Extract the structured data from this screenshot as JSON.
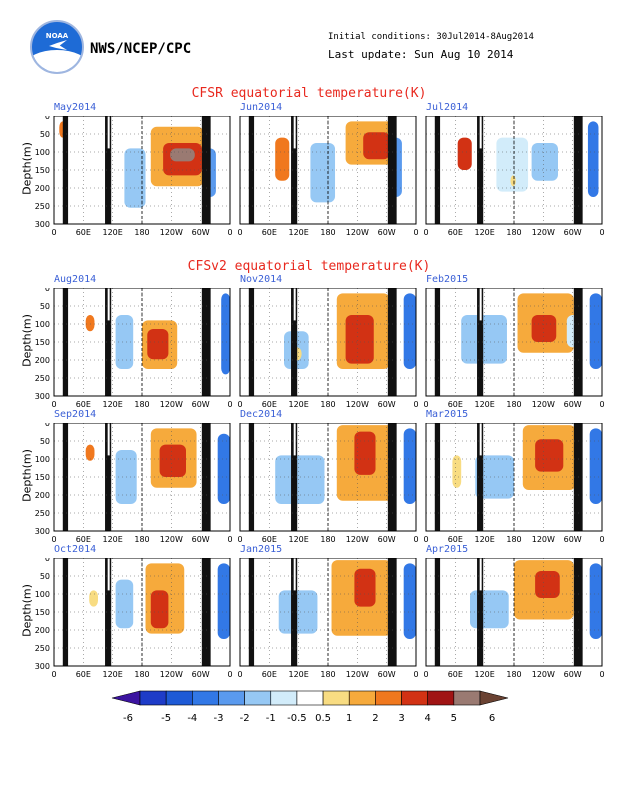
{
  "header": {
    "logo_text": "NOAA",
    "org": "NWS/NCEP/CPC",
    "initial_conditions": "Initial conditions: 30Jul2014-8Aug2014",
    "last_update": "Last update: Sun Aug 10 2014"
  },
  "sections": {
    "cfsr_title": "CFSR equatorial temperature(K)",
    "cfsv2_title": "CFSv2 equatorial temperature(K)"
  },
  "axes": {
    "ylabel": "Depth(m)",
    "yticks": [
      "0",
      "50",
      "100",
      "150",
      "200",
      "250",
      "300"
    ],
    "xticks": [
      "0",
      "60E",
      "120E",
      "180",
      "120W",
      "60W",
      "0"
    ]
  },
  "colors": {
    "title_red": "#e8281e",
    "panel_title_blue": "#3a5fd6",
    "land": "#111111"
  },
  "chart_data": {
    "type": "heatmap",
    "x": [
      "0",
      "60E",
      "120E",
      "180",
      "120W",
      "60W",
      "0"
    ],
    "ylim": [
      300,
      0
    ],
    "colorbar": {
      "levels": [
        "-6",
        "-5",
        "-4",
        "-3",
        "-2",
        "-1",
        "-0.5",
        "0.5",
        "1",
        "2",
        "3",
        "4",
        "5",
        "6"
      ],
      "colors": [
        "#3c14a0",
        "#1e3cc8",
        "#1e5ad6",
        "#3278e6",
        "#5a9aee",
        "#96c8f4",
        "#d2ecfa",
        "#ffffff",
        "#f8dc82",
        "#f6aa3c",
        "#f0781e",
        "#d23214",
        "#a01414",
        "#9a7a72",
        "#6a4232"
      ]
    },
    "panels": [
      {
        "title": "May2014",
        "group": "CFSR"
      },
      {
        "title": "Jun2014",
        "group": "CFSR"
      },
      {
        "title": "Jul2014",
        "group": "CFSR"
      },
      {
        "title": "Aug2014",
        "group": "CFSv2"
      },
      {
        "title": "Nov2014",
        "group": "CFSv2"
      },
      {
        "title": "Feb2015",
        "group": "CFSv2"
      },
      {
        "title": "Sep2014",
        "group": "CFSv2"
      },
      {
        "title": "Dec2014",
        "group": "CFSv2"
      },
      {
        "title": "Mar2015",
        "group": "CFSv2"
      },
      {
        "title": "Oct2014",
        "group": "CFSv2"
      },
      {
        "title": "Jan2015",
        "group": "CFSv2"
      },
      {
        "title": "Apr2015",
        "group": "CFSv2"
      }
    ]
  }
}
